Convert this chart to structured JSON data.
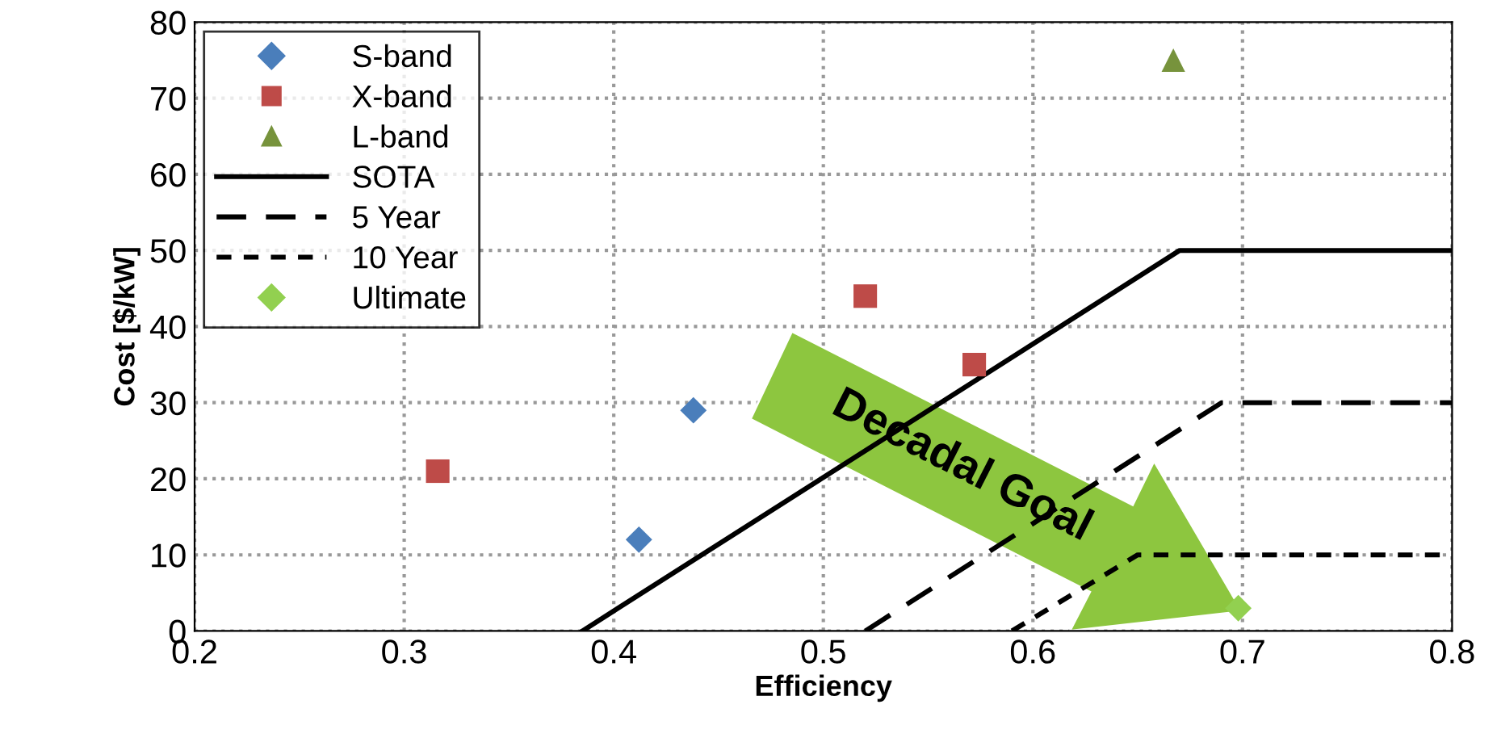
{
  "chart_data": {
    "type": "scatter",
    "xlabel": "Efficiency",
    "ylabel": "Cost [$/kW]",
    "xlim": [
      0.2,
      0.8
    ],
    "ylim": [
      0,
      80
    ],
    "xticks": [
      0.2,
      0.3,
      0.4,
      0.5,
      0.6,
      0.7,
      0.8
    ],
    "yticks": [
      0,
      10,
      20,
      30,
      40,
      50,
      60,
      70,
      80
    ],
    "grid": true,
    "legend": "top left",
    "series": [
      {
        "name": "S-band",
        "marker": "diamond",
        "color": "#4a7ebb",
        "x": [
          0.412,
          0.438
        ],
        "values": [
          12,
          29
        ]
      },
      {
        "name": "X-band",
        "marker": "square",
        "color": "#be4b48",
        "x": [
          0.316,
          0.52,
          0.572
        ],
        "values": [
          21,
          44,
          35
        ]
      },
      {
        "name": "L-band",
        "marker": "triangle",
        "color": "#77933c",
        "x": [
          0.667
        ],
        "values": [
          75
        ]
      },
      {
        "name": "SOTA",
        "type": "line",
        "line_style": "solid",
        "color": "#000000",
        "x": [
          0.385,
          0.67,
          0.8
        ],
        "values": [
          0,
          50,
          50
        ]
      },
      {
        "name": "5 Year",
        "type": "line",
        "line_style": "dashed",
        "color": "#000000",
        "x": [
          0.52,
          0.69,
          0.8
        ],
        "values": [
          0,
          30,
          30
        ]
      },
      {
        "name": "10 Year",
        "type": "line",
        "line_style": "dotted",
        "color": "#000000",
        "x": [
          0.59,
          0.65,
          0.8
        ],
        "values": [
          0,
          10,
          10
        ]
      },
      {
        "name": "Ultimate",
        "marker": "diamond",
        "color": "#92d050",
        "x": [
          0.698
        ],
        "values": [
          3
        ]
      }
    ],
    "annotations": [
      "Decadal Goal"
    ]
  }
}
